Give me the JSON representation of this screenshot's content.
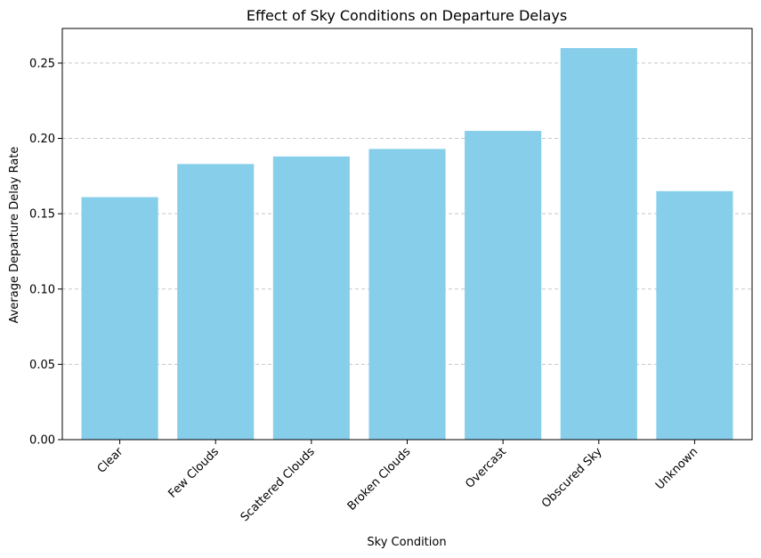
{
  "chart_data": {
    "type": "bar",
    "title": "Effect of Sky Conditions on Departure Delays",
    "xlabel": "Sky Condition",
    "ylabel": "Average Departure Delay Rate",
    "categories": [
      "Clear",
      "Few Clouds",
      "Scattered Clouds",
      "Broken Clouds",
      "Overcast",
      "Obscured Sky",
      "Unknown"
    ],
    "values": [
      0.161,
      0.183,
      0.188,
      0.193,
      0.205,
      0.26,
      0.165
    ],
    "ylim": [
      0,
      0.273
    ],
    "yticks": [
      0.0,
      0.05,
      0.1,
      0.15,
      0.2,
      0.25
    ],
    "ytick_labels": [
      "0.00",
      "0.05",
      "0.10",
      "0.15",
      "0.20",
      "0.25"
    ],
    "grid": "y-dashed",
    "bar_color": "#87ceeb",
    "grid_color": "#c8c8c8",
    "axis_color": "#000000"
  }
}
